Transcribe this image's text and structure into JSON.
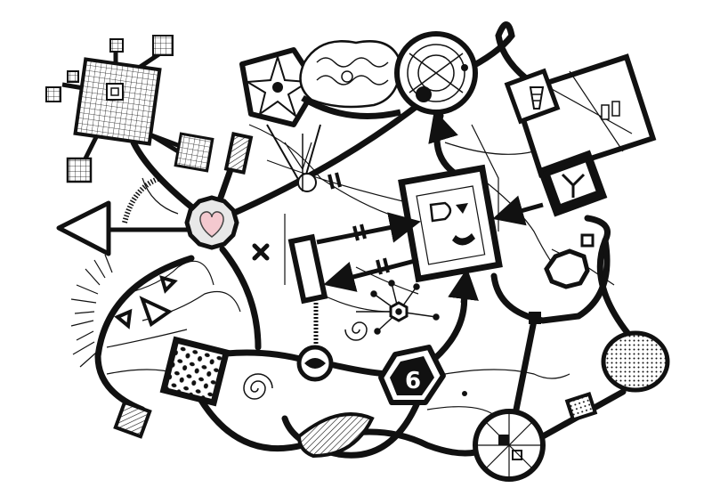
{
  "drawing": {
    "palette": {
      "ink": "#111111",
      "paper": "#ffffff",
      "heart": "#f4c9cf",
      "heart_outline": "#444444",
      "hatch": "#bbbbbb"
    },
    "nodes": {
      "number_badge": {
        "text": "6",
        "shape": "hexagon-icon"
      },
      "heart_hub": {
        "shape": "heart-icon"
      },
      "star_pentagon": {
        "shape": "star-icon"
      },
      "arrow_left": {
        "shape": "arrow-left-icon"
      },
      "cross_mark": {
        "shape": "x-mark-icon"
      }
    }
  }
}
